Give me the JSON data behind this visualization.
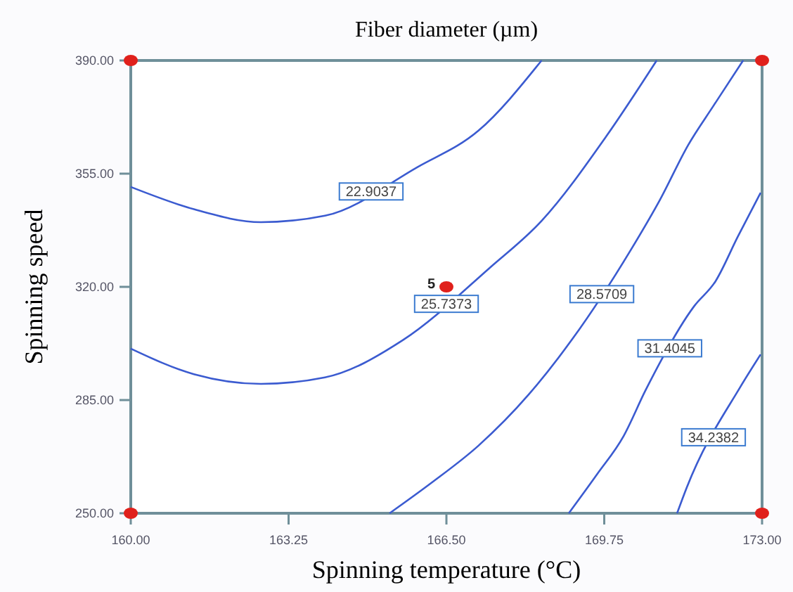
{
  "chart_data": {
    "type": "line",
    "title": "Fiber diameter (µm)",
    "xlabel": "Spinning temperature (°C)",
    "ylabel": "Spinning speed",
    "xlim": [
      160,
      173
    ],
    "ylim": [
      250,
      390
    ],
    "xticks": [
      {
        "value": 160,
        "label": "160.00"
      },
      {
        "value": 163.25,
        "label": "163.25"
      },
      {
        "value": 166.5,
        "label": "166.50"
      },
      {
        "value": 169.75,
        "label": "169.75"
      },
      {
        "value": 173,
        "label": "173.00"
      }
    ],
    "yticks": [
      {
        "value": 250,
        "label": "250.00"
      },
      {
        "value": 285,
        "label": "285.00"
      },
      {
        "value": 320,
        "label": "320.00"
      },
      {
        "value": 355,
        "label": "355.00"
      },
      {
        "value": 390,
        "label": "390.00"
      }
    ],
    "grid": false,
    "marker": "none",
    "line_style": "solid",
    "series": [
      {
        "name": "22.9037",
        "color": "#3b5bd0",
        "x": [
          160,
          161.3,
          162.68,
          164,
          165.9,
          167.16,
          168.46
        ],
        "values": [
          350.9,
          344,
          340,
          342,
          357,
          368.3,
          390
        ]
      },
      {
        "name": "25.7373",
        "color": "#3b5bd0",
        "x": [
          160,
          161.3,
          162.68,
          164,
          165.6,
          167.4,
          168.46,
          169.79,
          170.83
        ],
        "values": [
          300.9,
          293,
          290,
          292,
          303.5,
          326,
          340.4,
          366.5,
          390
        ]
      },
      {
        "name": "28.5709",
        "color": "#3b5bd0",
        "x": [
          165.33,
          166.2,
          167.16,
          168.2,
          169.1,
          170.3,
          170.9,
          171.48,
          172,
          172.61
        ],
        "values": [
          250,
          259.5,
          270.9,
          286.8,
          304,
          331.5,
          347,
          363.9,
          376,
          390
        ]
      },
      {
        "name": "31.4045",
        "color": "#3b5bd0",
        "x": [
          169.02,
          169.6,
          170.15,
          170.6,
          171.6,
          172.04,
          172.5,
          172.97
        ],
        "values": [
          250,
          262,
          273.9,
          288,
          314,
          321.7,
          335.5,
          349.1
        ]
      },
      {
        "name": "34.2382",
        "color": "#3b5bd0",
        "x": [
          171.25,
          171.45,
          172.55,
          172.97
        ],
        "values": [
          250,
          258,
          289,
          299.1
        ]
      },
      {
        "type": "scatter",
        "marker": "circle",
        "color": "#e0201b",
        "x": [
          160,
          160,
          173,
          173,
          166.5
        ],
        "values": [
          250,
          390,
          250,
          390,
          320
        ]
      }
    ],
    "annotations": [
      {
        "text": "5",
        "x": 166.5,
        "y": 320
      }
    ]
  }
}
